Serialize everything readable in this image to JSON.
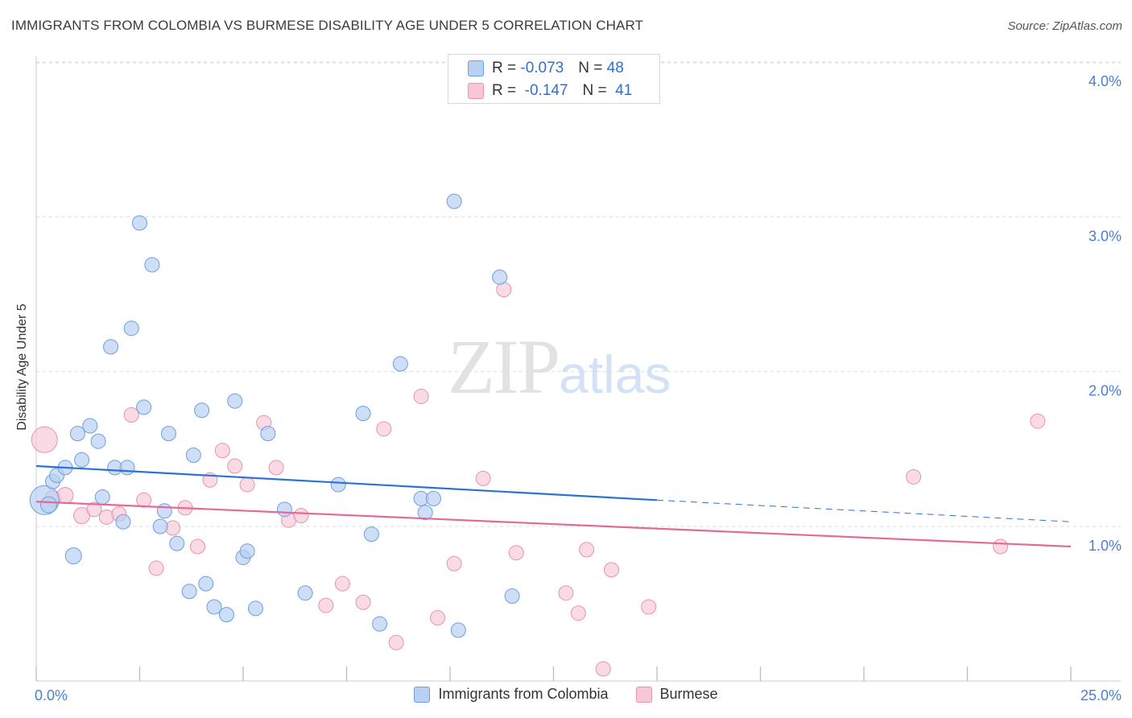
{
  "title": "IMMIGRANTS FROM COLOMBIA VS BURMESE DISABILITY AGE UNDER 5 CORRELATION CHART",
  "source": "Source: ZipAtlas.com",
  "watermark": {
    "zip": "ZIP",
    "atlas": "atlas"
  },
  "legend_top": {
    "rows": [
      {
        "r_label": "R = ",
        "r_value": "-0.073",
        "n_label": "N = ",
        "n_value": "48"
      },
      {
        "r_label": "R = ",
        "r_value": " -0.147",
        "n_label": "N = ",
        "n_value": " 41"
      }
    ]
  },
  "legend_bottom": [
    "Immigrants from Colombia",
    "Burmese"
  ],
  "colors": {
    "blue_fill": "#b8d0f2",
    "blue_stroke": "#6d9ee0",
    "blue_line": "#2c72d6",
    "pink_fill": "#f8c6d6",
    "pink_stroke": "#e793ae",
    "pink_line": "#e46a96",
    "tick_text": "#4a7fd0",
    "grid": "#dddddd"
  },
  "chart_data": {
    "type": "scatter",
    "title": "IMMIGRANTS FROM COLOMBIA VS BURMESE DISABILITY AGE UNDER 5 CORRELATION CHART",
    "xlabel": "",
    "ylabel": "Disability Age Under 5",
    "xlim": [
      0,
      25
    ],
    "ylim": [
      0,
      4.2
    ],
    "x_tick_labels": [
      "0.0%",
      "25.0%"
    ],
    "y_ticks": [
      1.0,
      2.0,
      3.0,
      4.0
    ],
    "y_tick_labels": [
      "1.0%",
      "2.0%",
      "3.0%",
      "4.0%"
    ],
    "grid": "horizontal dashed",
    "legend": "bottom-center",
    "series": [
      {
        "name": "Immigrants from Colombia",
        "r": -0.073,
        "n": 48,
        "trend": {
          "x": [
            0,
            15,
            25
          ],
          "y": [
            1.39,
            1.17,
            1.03
          ],
          "solid_until": 15
        },
        "points": [
          [
            0.2,
            1.17,
            18
          ],
          [
            0.3,
            1.14,
            10
          ],
          [
            0.4,
            1.29,
            9
          ],
          [
            0.5,
            1.33,
            9
          ],
          [
            0.7,
            1.38,
            9
          ],
          [
            0.9,
            0.81,
            10
          ],
          [
            1.0,
            1.6,
            9
          ],
          [
            1.1,
            1.43,
            9
          ],
          [
            1.3,
            1.65,
            9
          ],
          [
            1.5,
            1.55,
            9
          ],
          [
            1.6,
            1.19,
            9
          ],
          [
            1.8,
            2.16,
            9
          ],
          [
            1.9,
            1.38,
            9
          ],
          [
            2.1,
            1.03,
            9
          ],
          [
            2.2,
            1.38,
            9
          ],
          [
            2.3,
            2.28,
            9
          ],
          [
            2.5,
            2.96,
            9
          ],
          [
            2.6,
            1.77,
            9
          ],
          [
            2.8,
            2.69,
            9
          ],
          [
            3.0,
            1.0,
            9
          ],
          [
            3.1,
            1.1,
            9
          ],
          [
            3.2,
            1.6,
            9
          ],
          [
            3.4,
            0.89,
            9
          ],
          [
            3.7,
            0.58,
            9
          ],
          [
            3.8,
            1.46,
            9
          ],
          [
            4.0,
            1.75,
            9
          ],
          [
            4.1,
            0.63,
            9
          ],
          [
            4.3,
            0.48,
            9
          ],
          [
            4.6,
            0.43,
            9
          ],
          [
            4.8,
            1.81,
            9
          ],
          [
            5.0,
            0.8,
            9
          ],
          [
            5.1,
            0.84,
            9
          ],
          [
            5.3,
            0.47,
            9
          ],
          [
            5.6,
            1.6,
            9
          ],
          [
            6.0,
            1.11,
            9
          ],
          [
            6.5,
            0.57,
            9
          ],
          [
            7.3,
            1.27,
            9
          ],
          [
            7.9,
            1.73,
            9
          ],
          [
            8.1,
            0.95,
            9
          ],
          [
            8.3,
            0.37,
            9
          ],
          [
            8.8,
            2.05,
            9
          ],
          [
            9.3,
            1.18,
            9
          ],
          [
            9.4,
            1.09,
            9
          ],
          [
            9.6,
            1.18,
            9
          ],
          [
            10.1,
            3.1,
            9
          ],
          [
            10.2,
            0.33,
            9
          ],
          [
            11.2,
            2.61,
            9
          ],
          [
            11.5,
            0.55,
            9
          ]
        ]
      },
      {
        "name": "Burmese",
        "r": -0.147,
        "n": 41,
        "trend": {
          "x": [
            0,
            25
          ],
          "y": [
            1.16,
            0.87
          ]
        },
        "points": [
          [
            0.2,
            1.56,
            16
          ],
          [
            0.4,
            1.18,
            10
          ],
          [
            0.7,
            1.2,
            10
          ],
          [
            1.1,
            1.07,
            10
          ],
          [
            1.4,
            1.11,
            9
          ],
          [
            1.7,
            1.06,
            9
          ],
          [
            2.0,
            1.08,
            9
          ],
          [
            2.3,
            1.72,
            9
          ],
          [
            2.6,
            1.17,
            9
          ],
          [
            2.9,
            0.73,
            9
          ],
          [
            3.3,
            0.99,
            9
          ],
          [
            3.6,
            1.12,
            9
          ],
          [
            3.9,
            0.87,
            9
          ],
          [
            4.2,
            1.3,
            9
          ],
          [
            4.5,
            1.49,
            9
          ],
          [
            4.8,
            1.39,
            9
          ],
          [
            5.1,
            1.27,
            9
          ],
          [
            5.5,
            1.67,
            9
          ],
          [
            5.8,
            1.38,
            9
          ],
          [
            6.1,
            1.04,
            9
          ],
          [
            6.4,
            1.07,
            9
          ],
          [
            7.0,
            0.49,
            9
          ],
          [
            7.4,
            0.63,
            9
          ],
          [
            7.9,
            0.51,
            9
          ],
          [
            8.4,
            1.63,
            9
          ],
          [
            8.7,
            0.25,
            9
          ],
          [
            9.3,
            1.84,
            9
          ],
          [
            9.7,
            0.41,
            9
          ],
          [
            10.1,
            0.76,
            9
          ],
          [
            10.8,
            1.31,
            9
          ],
          [
            11.3,
            2.53,
            9
          ],
          [
            11.6,
            0.83,
            9
          ],
          [
            12.8,
            0.57,
            9
          ],
          [
            13.1,
            0.44,
            9
          ],
          [
            13.3,
            0.85,
            9
          ],
          [
            13.7,
            0.08,
            9
          ],
          [
            13.9,
            0.72,
            9
          ],
          [
            14.8,
            0.48,
            9
          ],
          [
            21.2,
            1.32,
            9
          ],
          [
            23.3,
            0.87,
            9
          ],
          [
            24.2,
            1.68,
            9
          ]
        ]
      }
    ]
  }
}
